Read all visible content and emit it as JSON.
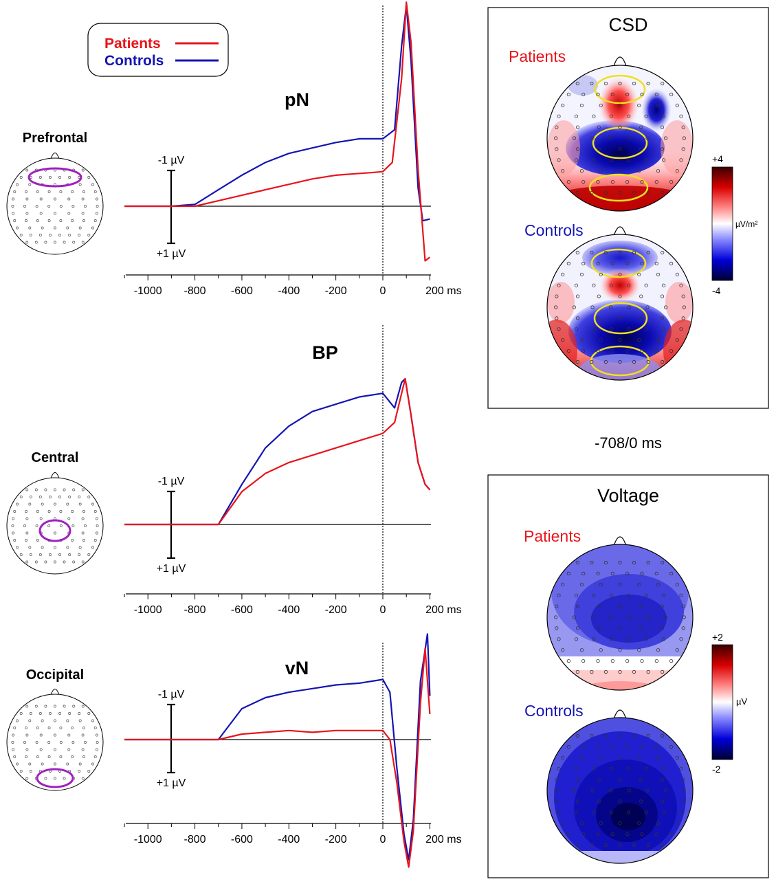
{
  "legend": {
    "items": [
      {
        "label": "Patients",
        "color": "#e8141b"
      },
      {
        "label": "Controls",
        "color": "#1414b4"
      }
    ]
  },
  "scale_bar": {
    "top_label": "-1 µV",
    "bottom_label": "+1 µV"
  },
  "colors": {
    "patients": "#e8141b",
    "controls": "#1414b4",
    "electrode_ring": "#a020c0",
    "highlight_ring": "#f0e020"
  },
  "chart_data": [
    {
      "type": "line",
      "title": "pN",
      "region_label": "Prefrontal",
      "xlim": [
        -1100,
        200
      ],
      "x_ticks": [
        "-1000",
        "-800",
        "-600",
        "-400",
        "-200",
        "0",
        "200 ms"
      ],
      "x_tick_values": [
        -1000,
        -800,
        -600,
        -400,
        -200,
        0,
        200
      ],
      "y_unit": "µV",
      "y_scale_bar": [
        -1,
        1
      ],
      "series": [
        {
          "name": "Patients",
          "x": [
            -1100,
            -1000,
            -900,
            -800,
            -700,
            -600,
            -500,
            -400,
            -300,
            -200,
            -100,
            -50,
            0,
            40,
            80,
            100,
            120,
            150,
            180,
            200
          ],
          "y": [
            0,
            0,
            0,
            0,
            -0.15,
            -0.3,
            -0.45,
            -0.6,
            -0.75,
            -0.85,
            -0.9,
            -0.92,
            -0.95,
            -1.2,
            -3.5,
            -5.6,
            -4.5,
            -1.0,
            1.5,
            1.4
          ]
        },
        {
          "name": "Controls",
          "x": [
            -1100,
            -1000,
            -900,
            -800,
            -700,
            -600,
            -500,
            -400,
            -300,
            -200,
            -100,
            0,
            50,
            80,
            100,
            120,
            150,
            170,
            200
          ],
          "y": [
            0,
            0,
            0,
            -0.05,
            -0.45,
            -0.85,
            -1.2,
            -1.45,
            -1.6,
            -1.75,
            -1.85,
            -1.85,
            -2.1,
            -4.4,
            -5.5,
            -4.0,
            -0.5,
            0.4,
            0.35
          ]
        }
      ]
    },
    {
      "type": "line",
      "title": "BP",
      "region_label": "Central",
      "xlim": [
        -1100,
        200
      ],
      "x_ticks": [
        "-1000",
        "-800",
        "-600",
        "-400",
        "-200",
        "0",
        "200 ms"
      ],
      "x_tick_values": [
        -1000,
        -800,
        -600,
        -400,
        -200,
        0,
        200
      ],
      "y_unit": "µV",
      "y_scale_bar": [
        -1,
        1
      ],
      "series": [
        {
          "name": "Patients",
          "x": [
            -1100,
            -1000,
            -900,
            -800,
            -700,
            -600,
            -500,
            -400,
            -300,
            -200,
            -100,
            0,
            50,
            80,
            95,
            120,
            150,
            180,
            200
          ],
          "y": [
            0,
            0,
            0,
            0,
            0,
            -0.9,
            -1.4,
            -1.7,
            -1.9,
            -2.1,
            -2.3,
            -2.5,
            -2.8,
            -3.6,
            -4.0,
            -3.0,
            -1.7,
            -1.1,
            -0.95
          ]
        },
        {
          "name": "Controls",
          "x": [
            -1100,
            -1000,
            -900,
            -800,
            -700,
            -600,
            -500,
            -400,
            -300,
            -200,
            -100,
            0,
            50,
            80,
            95,
            120,
            150,
            180,
            200
          ],
          "y": [
            0,
            0,
            0,
            0,
            0,
            -1.1,
            -2.1,
            -2.7,
            -3.1,
            -3.3,
            -3.5,
            -3.6,
            -3.2,
            -3.9,
            -4.0,
            -3.0,
            -1.7,
            -1.1,
            -0.95
          ]
        }
      ]
    },
    {
      "type": "line",
      "title": "vN",
      "region_label": "Occipital",
      "xlim": [
        -1100,
        200
      ],
      "x_ticks": [
        "-1000",
        "-800",
        "-600",
        "-400",
        "-200",
        "0",
        "200 ms"
      ],
      "x_tick_values": [
        -1000,
        -800,
        -600,
        -400,
        -200,
        0,
        200
      ],
      "y_unit": "µV",
      "y_scale_bar": [
        -1,
        1
      ],
      "series": [
        {
          "name": "Patients",
          "x": [
            -1100,
            -1000,
            -900,
            -800,
            -700,
            -600,
            -500,
            -400,
            -300,
            -200,
            -100,
            0,
            30,
            60,
            90,
            110,
            130,
            160,
            180,
            200
          ],
          "y": [
            0,
            0,
            0,
            0,
            0,
            -0.15,
            -0.2,
            -0.25,
            -0.2,
            -0.25,
            -0.25,
            -0.25,
            0,
            1.2,
            2.8,
            3.5,
            2.5,
            -1.0,
            -2.5,
            -0.7
          ]
        },
        {
          "name": "Controls",
          "x": [
            -1100,
            -1000,
            -900,
            -800,
            -700,
            -600,
            -500,
            -400,
            -300,
            -200,
            -100,
            0,
            30,
            60,
            90,
            110,
            130,
            160,
            190,
            200
          ],
          "y": [
            0,
            0,
            0,
            0,
            0,
            -0.85,
            -1.15,
            -1.3,
            -1.4,
            -1.5,
            -1.55,
            -1.65,
            -1.3,
            0.8,
            2.6,
            3.3,
            2.2,
            -1.6,
            -2.9,
            -1.2
          ]
        }
      ]
    }
  ],
  "csd_panel": {
    "title": "CSD",
    "patients_label": "Patients",
    "controls_label": "Controls",
    "colorbar": {
      "max_label": "+4",
      "min_label": "-4",
      "unit_label": "µV/m²"
    }
  },
  "time_window": "-708/0 ms",
  "voltage_panel": {
    "title": "Voltage",
    "patients_label": "Patients",
    "controls_label": "Controls",
    "colorbar": {
      "max_label": "+2",
      "min_label": "-2",
      "unit_label": "µV"
    }
  }
}
